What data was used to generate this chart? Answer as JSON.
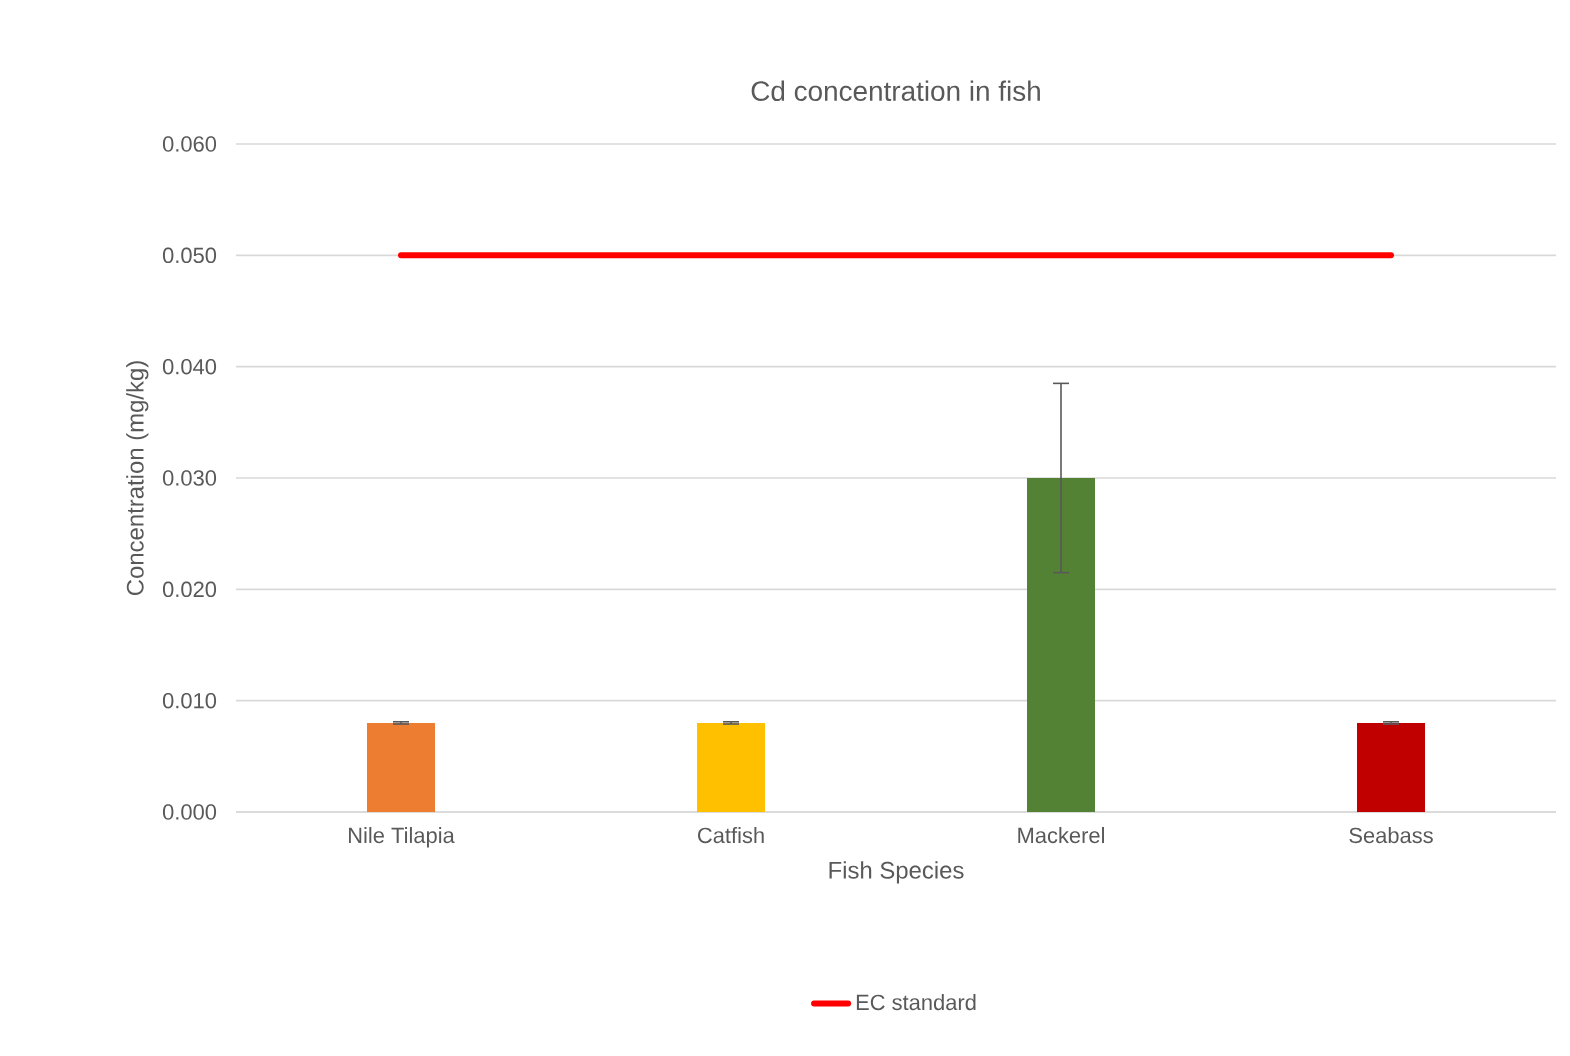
{
  "chart_data": {
    "type": "bar",
    "title": "Cd concentration in fish",
    "xlabel": "Fish Species",
    "ylabel": "Concentration (mg/kg)",
    "categories": [
      "Nile Tilapia",
      "Catfish",
      "Mackerel",
      "Seabass"
    ],
    "series": [
      {
        "values": [
          0.008,
          0.008,
          0.03,
          0.008
        ],
        "colors": [
          "#ed7d31",
          "#ffc000",
          "#548235",
          "#c00000"
        ],
        "errors": [
          0.0001,
          0.0001,
          0.0085,
          0.0001
        ]
      },
      {
        "type": "line",
        "name": "EC standard",
        "color": "#ff0000",
        "values": [
          0.05,
          0.05,
          0.05,
          0.05
        ]
      }
    ],
    "ylim": [
      0,
      0.06
    ],
    "yticks": [
      {
        "value": 0,
        "label": "0.000"
      },
      {
        "value": 0.01,
        "label": "0.010"
      },
      {
        "value": 0.02,
        "label": "0.020"
      },
      {
        "value": 0.03,
        "label": "0.030"
      },
      {
        "value": 0.04,
        "label": "0.040"
      },
      {
        "value": 0.05,
        "label": "0.050"
      },
      {
        "value": 0.06,
        "label": "0.060"
      }
    ],
    "grid": "y",
    "legend": "bottom"
  }
}
